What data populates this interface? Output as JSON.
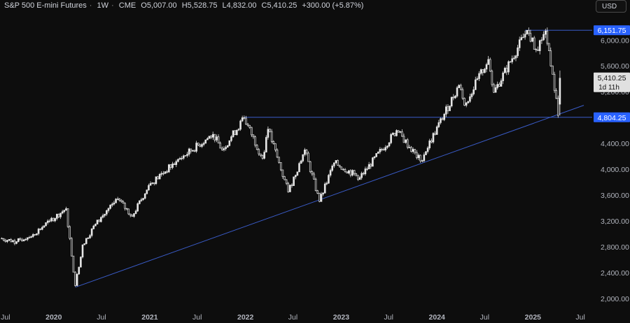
{
  "header": {
    "symbol": "S&P 500 E-mini Futures",
    "interval": "1W",
    "exchange": "CME",
    "open": "O5,007.00",
    "high": "H5,528.75",
    "low": "L4,832.00",
    "close": "C5,410.25",
    "change": "+300.00 (+5.87%)"
  },
  "currency_button": "USD",
  "colors": {
    "background": "#0d0d0d",
    "candle": "#e6e6e6",
    "trendline": "#3a5cc9",
    "label_bg": "#2962ff",
    "axis_text": "#b2b5be"
  },
  "chart_data": {
    "type": "candlestick",
    "title": "S&P 500 E-mini Futures · 1W · CME",
    "x_ticks": [
      "Jul",
      "2020",
      "Jul",
      "2021",
      "Jul",
      "2022",
      "Jul",
      "2023",
      "Jul",
      "2024",
      "Jul",
      "2025",
      "Jul"
    ],
    "y_ticks": [
      "6,000.00",
      "5,600.00",
      "5,200.00",
      "4,400.00",
      "4,000.00",
      "3,600.00",
      "3,200.00",
      "2,800.00",
      "2,400.00",
      "2,000.00"
    ],
    "ylim": [
      1880,
      6360
    ],
    "xlim": [
      "2019-06-10",
      "2025-08-15"
    ],
    "series_anchor_points": [
      {
        "date": "2019-06-10",
        "value": 2930
      },
      {
        "date": "2019-08-12",
        "value": 2880
      },
      {
        "date": "2019-10-14",
        "value": 2990
      },
      {
        "date": "2019-12-16",
        "value": 3200
      },
      {
        "date": "2020-02-17",
        "value": 3390
      },
      {
        "date": "2020-03-23",
        "value": 2200
      },
      {
        "date": "2020-04-20",
        "value": 2830
      },
      {
        "date": "2020-06-08",
        "value": 3150
      },
      {
        "date": "2020-09-01",
        "value": 3540
      },
      {
        "date": "2020-10-26",
        "value": 3270
      },
      {
        "date": "2020-12-28",
        "value": 3750
      },
      {
        "date": "2021-04-12",
        "value": 4120
      },
      {
        "date": "2021-08-30",
        "value": 4540
      },
      {
        "date": "2021-10-04",
        "value": 4300
      },
      {
        "date": "2021-12-27",
        "value": 4790
      },
      {
        "date": "2022-03-07",
        "value": 4170
      },
      {
        "date": "2022-03-28",
        "value": 4620
      },
      {
        "date": "2022-06-13",
        "value": 3650
      },
      {
        "date": "2022-08-15",
        "value": 4300
      },
      {
        "date": "2022-10-10",
        "value": 3500
      },
      {
        "date": "2022-12-05",
        "value": 4100
      },
      {
        "date": "2023-03-13",
        "value": 3870
      },
      {
        "date": "2023-07-31",
        "value": 4600
      },
      {
        "date": "2023-10-30",
        "value": 4130
      },
      {
        "date": "2024-03-25",
        "value": 5300
      },
      {
        "date": "2024-04-15",
        "value": 4990
      },
      {
        "date": "2024-07-15",
        "value": 5700
      },
      {
        "date": "2024-08-05",
        "value": 5190
      },
      {
        "date": "2024-12-09",
        "value": 6150
      },
      {
        "date": "2025-01-13",
        "value": 5850
      },
      {
        "date": "2025-02-18",
        "value": 6140
      },
      {
        "date": "2025-03-10",
        "value": 5600
      },
      {
        "date": "2025-03-31",
        "value": 5100
      },
      {
        "date": "2025-04-07",
        "value": 4832
      },
      {
        "date": "2025-04-14",
        "value": 5410.25
      }
    ],
    "horizontal_lines": [
      {
        "value": 6151.75,
        "label": "6,151.75"
      },
      {
        "value": 4804.25,
        "label": "4,804.25"
      }
    ],
    "trendline": {
      "start": {
        "date": "2020-03-23",
        "value": 2174
      },
      "end": {
        "date": "2025-07-14",
        "value": 4990
      }
    },
    "last_price": {
      "value": 5410.25,
      "label": "5,410.25",
      "countdown": "1d 11h"
    }
  }
}
